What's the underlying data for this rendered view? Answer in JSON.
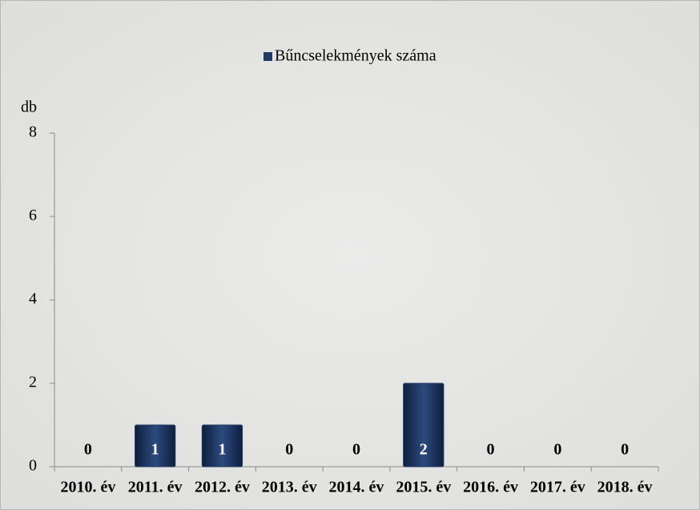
{
  "chart_data": {
    "type": "bar",
    "y_label": "db",
    "categories": [
      "2010. év",
      "2011. év",
      "2012. év",
      "2013. év",
      "2014. év",
      "2015. év",
      "2016. év",
      "2017. év",
      "2018. év"
    ],
    "series": [
      {
        "name": "Bűncselekmények száma",
        "color": "#1f3864",
        "values": [
          0,
          1,
          1,
          0,
          0,
          2,
          0,
          0,
          0
        ]
      }
    ],
    "ylim": [
      0,
      8
    ],
    "yticks": [
      0,
      2,
      4,
      6,
      8
    ],
    "grid": false,
    "legend": "top",
    "data_labels": true
  }
}
